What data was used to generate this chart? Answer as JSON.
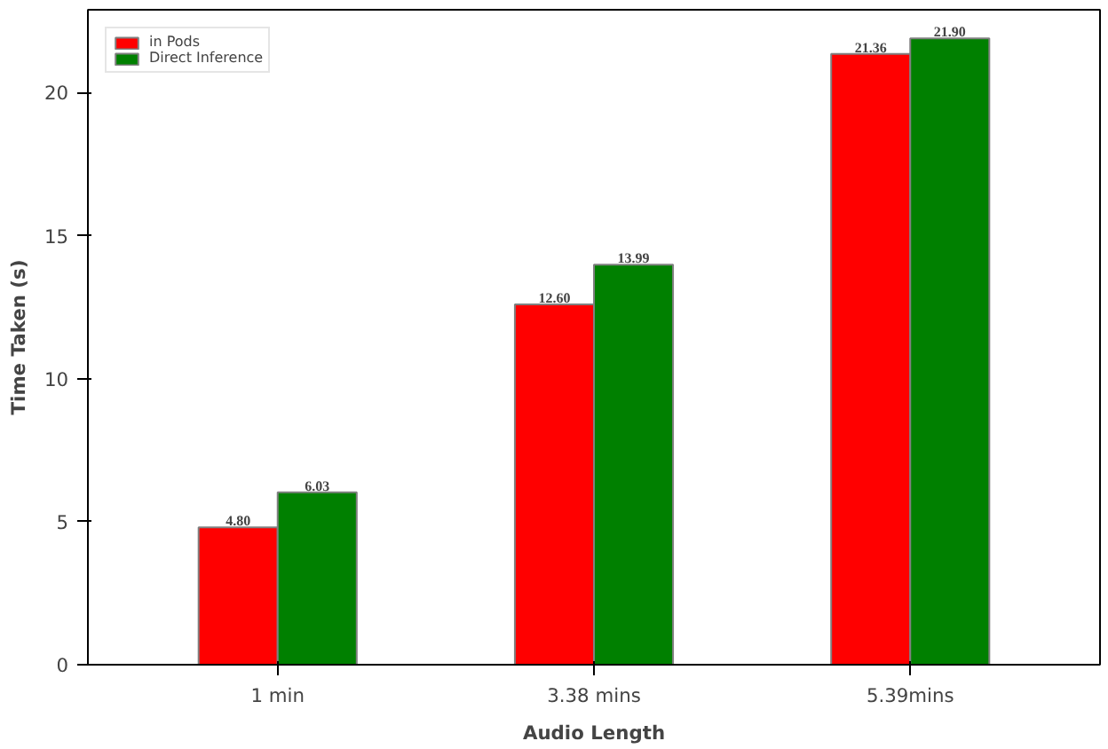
{
  "chart_data": {
    "type": "bar",
    "xlabel": "Audio Length",
    "ylabel": "Time Taken (s)",
    "categories": [
      "1 min",
      "3.38 mins",
      "5.39mins"
    ],
    "series": [
      {
        "name": "in Pods",
        "color": "#ff0000",
        "values": [
          4.8,
          12.6,
          21.36
        ],
        "value_labels": [
          "4.80",
          "12.60",
          "21.36"
        ]
      },
      {
        "name": "Direct Inference",
        "color": "#008000",
        "values": [
          6.03,
          13.99,
          21.9
        ],
        "value_labels": [
          "6.03",
          "13.99",
          "21.90"
        ]
      }
    ],
    "ylim": [
      0,
      22.9
    ],
    "yticks": [
      0,
      5,
      10,
      15,
      20
    ],
    "grid": false,
    "legend": "top left"
  }
}
